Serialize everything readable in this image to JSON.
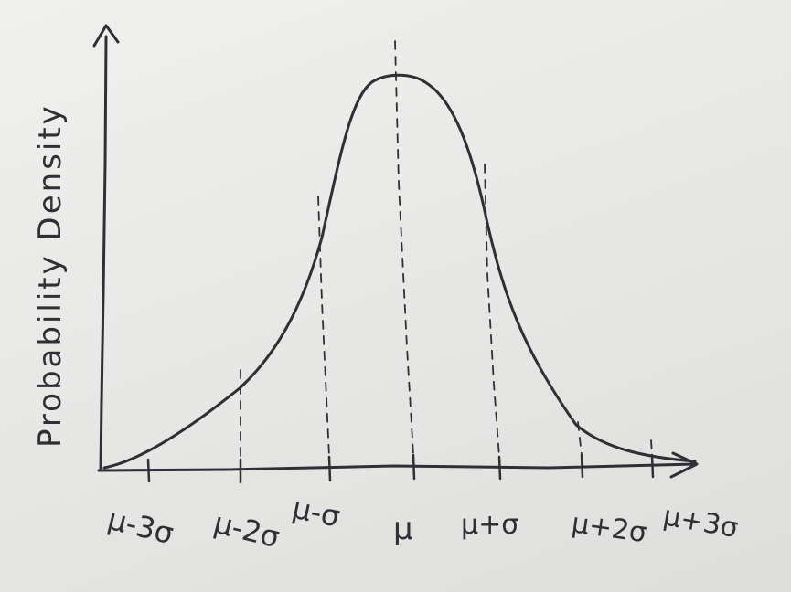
{
  "diagram": {
    "y_axis_label": "Probability Density",
    "x_ticks": [
      "μ-3σ",
      "μ-2σ",
      "μ-σ",
      "μ",
      "μ+σ",
      "μ+2σ",
      "μ+3σ"
    ],
    "curve": "normal distribution bell curve",
    "ink_color": "#2f3036",
    "paper_color": "#ecebe9"
  }
}
